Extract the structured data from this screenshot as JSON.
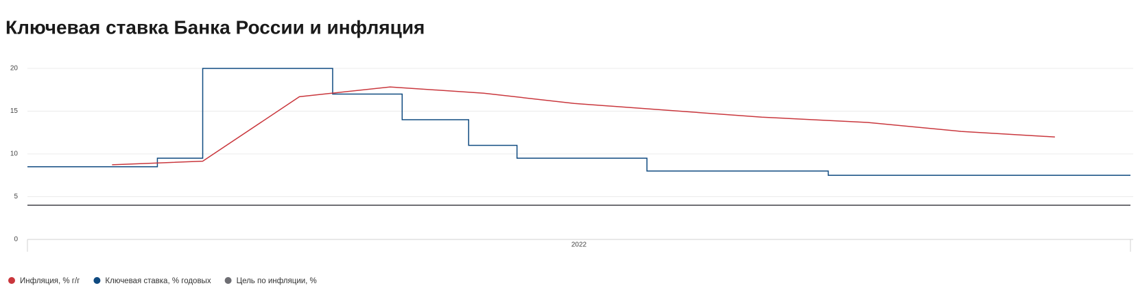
{
  "chart_data": {
    "type": "line",
    "title": "Ключевая ставка Банка России и инфляция",
    "xlim": [
      0,
      365
    ],
    "xticks": [
      {
        "value": 182.5,
        "label": "2022"
      }
    ],
    "ylim": [
      0,
      20
    ],
    "yticks": [
      0,
      5,
      10,
      15,
      20
    ],
    "grid": true,
    "series": [
      {
        "name": "Инфляция, % г/г",
        "color": "#c9363c",
        "x": [
          28,
          58,
          90,
          120,
          151,
          181,
          212,
          243,
          278,
          309,
          340
        ],
        "values": [
          8.73,
          9.15,
          16.69,
          17.83,
          17.1,
          15.9,
          15.1,
          14.3,
          13.68,
          12.63,
          11.98
        ]
      },
      {
        "name": "Ключевая ставка, % годовых",
        "color": "#0f4a80",
        "step": true,
        "x": [
          0,
          43,
          58,
          101,
          124,
          146,
          162,
          205,
          265
        ],
        "values": [
          8.5,
          9.5,
          20,
          17,
          14,
          11,
          9.5,
          8,
          7.5
        ]
      },
      {
        "name": "Цель по инфляции, %",
        "color": "#6e6e73",
        "x": [
          0,
          365
        ],
        "values": [
          4,
          4
        ]
      }
    ]
  }
}
